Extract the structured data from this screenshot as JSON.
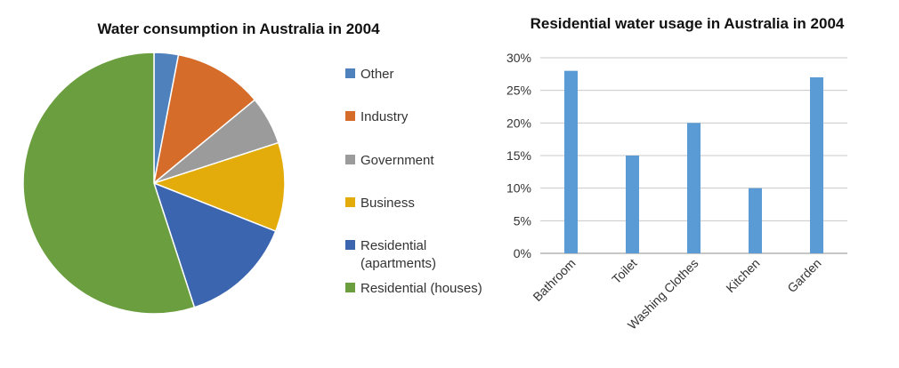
{
  "chart_data": [
    {
      "type": "pie",
      "title": "Water consumption in Australia in 2004",
      "start_angle_deg": 0,
      "direction": "clockwise",
      "legend_placement": "right",
      "slices": [
        {
          "label": "Other",
          "value": 3,
          "color": "#4F81BD"
        },
        {
          "label": "Industry",
          "value": 11,
          "color": "#D56C2A"
        },
        {
          "label": "Government",
          "value": 6,
          "color": "#9B9B9B"
        },
        {
          "label": "Business",
          "value": 11,
          "color": "#E3AC0A"
        },
        {
          "label": "Residential (apartments)",
          "value": 14,
          "color": "#3C65B0"
        },
        {
          "label": "Residential (houses)",
          "value": 55,
          "color": "#6A9E3E"
        }
      ],
      "legend": [
        {
          "lines": [
            "Other"
          ],
          "color": "#4F81BD"
        },
        {
          "lines": [
            "Industry"
          ],
          "color": "#D56C2A"
        },
        {
          "lines": [
            "Government"
          ],
          "color": "#9B9B9B"
        },
        {
          "lines": [
            "Business"
          ],
          "color": "#E3AC0A"
        },
        {
          "lines": [
            "Residential",
            "(apartments)"
          ],
          "color": "#3C65B0"
        },
        {
          "lines": [
            "Residential (houses)"
          ],
          "color": "#6A9E3E"
        }
      ]
    },
    {
      "type": "bar",
      "title": "Residential water usage in Australia in 2004",
      "categories": [
        "Bathroom",
        "Toilet",
        "Washing Clothes",
        "Kitchen",
        "Garden"
      ],
      "values": [
        28,
        15,
        20,
        10,
        27
      ],
      "unit": "%",
      "ylim": [
        0,
        30
      ],
      "yticks": [
        "0%",
        "5%",
        "10%",
        "15%",
        "20%",
        "25%",
        "30%"
      ],
      "xlabel": "",
      "ylabel": "",
      "grid": true,
      "bar_color": "#5B9BD5"
    }
  ]
}
